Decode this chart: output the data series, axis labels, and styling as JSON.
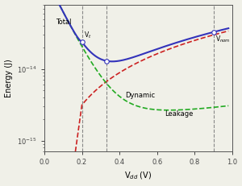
{
  "xlabel": "V$_{dd}$ (V)",
  "ylabel": "Energy (J)",
  "xlim": [
    0.0,
    1.0
  ],
  "ylim": [
    7e-16,
    8e-14
  ],
  "vt": 0.2,
  "vmin": 0.33,
  "vnom": 0.9,
  "dashed_verticals": [
    0.2,
    0.33,
    0.9
  ],
  "label_total": "Total",
  "label_dynamic": "Dynamic",
  "label_leakage": "Leakage",
  "label_vt": "V$_t$",
  "label_vnom": "V$_{nom}$",
  "color_total": "#3333bb",
  "color_dynamic": "#cc2222",
  "color_leakage": "#22aa22",
  "color_vertical": "#888888",
  "background": "#f0f0e8"
}
